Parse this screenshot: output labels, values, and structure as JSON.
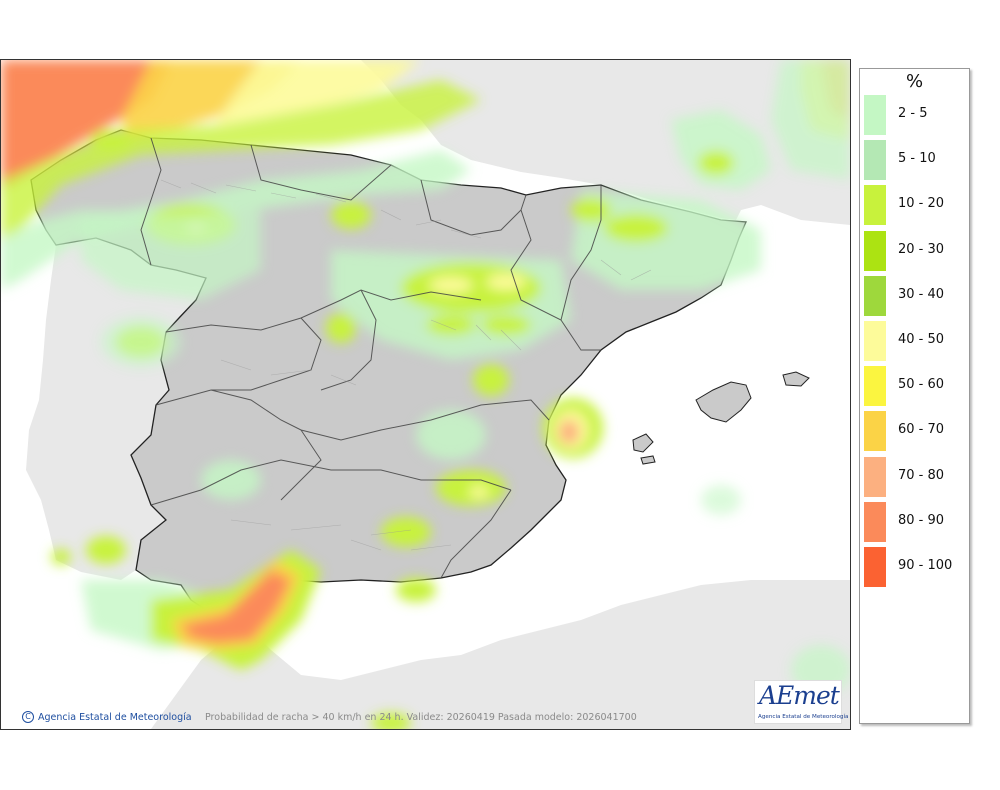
{
  "map": {
    "caption": "Probabilidad de racha > 40 km/h en 24 h. Validez: 20260419 Pasada modelo: 2026041700",
    "credit": "Agencia Estatal de Meteorología",
    "credit_symbol": "C",
    "logo_text": "AEmet",
    "logo_subtitle": "Agencia Estatal de Meteorología"
  },
  "legend": {
    "title": "%",
    "items": [
      {
        "label": "2 - 5",
        "color": "#c4f7c4"
      },
      {
        "label": "5 - 10",
        "color": "#b4e8b4"
      },
      {
        "label": "10 - 20",
        "color": "#c8f23c"
      },
      {
        "label": "20 - 30",
        "color": "#ace312"
      },
      {
        "label": "30 - 40",
        "color": "#9ed83c"
      },
      {
        "label": "40 - 50",
        "color": "#fdfb9a"
      },
      {
        "label": "50 - 60",
        "color": "#fbf540"
      },
      {
        "label": "60 - 70",
        "color": "#fbd346"
      },
      {
        "label": "70 - 80",
        "color": "#fcb080"
      },
      {
        "label": "80 - 90",
        "color": "#fb8a5a"
      },
      {
        "label": "90 - 100",
        "color": "#fb6232"
      }
    ]
  },
  "colors": {
    "land_spain": "#cacaca",
    "land_other": "#e8e8e8",
    "sea": "#ffffff",
    "border": "#222222"
  }
}
